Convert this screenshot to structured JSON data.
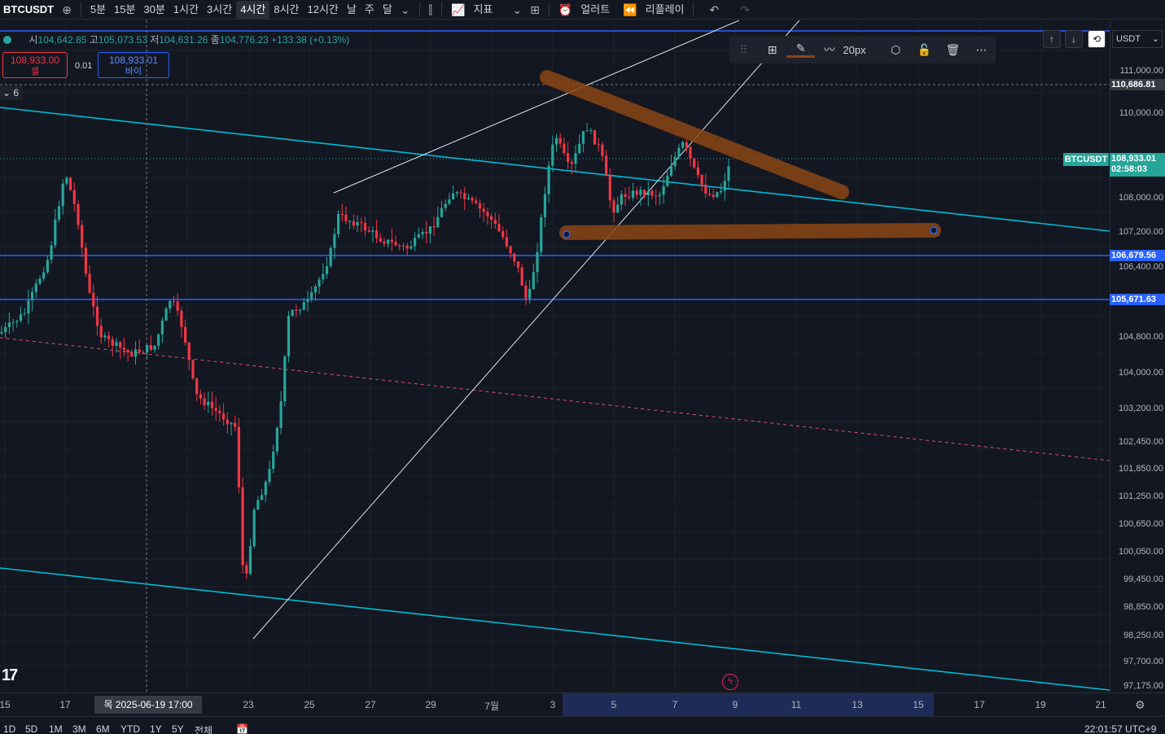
{
  "toolbar": {
    "symbol": "BTCUSDT",
    "add_symbol_icon": "plus-circle-icon",
    "intervals": [
      "5분",
      "15분",
      "30분",
      "1시간",
      "3시간",
      "4시간",
      "8시간",
      "12시간",
      "날",
      "주",
      "달"
    ],
    "active_interval": "4시간",
    "indicators_label": "지표",
    "alert_label": "얼러트",
    "replay_label": "리플레이"
  },
  "ohlc": {
    "open_label": "시",
    "open": "104,642.85",
    "high_label": "고",
    "high": "105,073.53",
    "low_label": "저",
    "low": "104,631.26",
    "close_label": "종",
    "close": "104,776.23",
    "change": "+133.38 (+0.13%)"
  },
  "trade": {
    "sell_price": "108,933.00",
    "sell_label": "셀",
    "spread": "0.01",
    "buy_price": "108,933.01",
    "buy_label": "바이"
  },
  "indicator_collapse": "6",
  "drawing_toolbar": {
    "stroke_width": "20px"
  },
  "price_scale": {
    "currency": "USDT",
    "ticks": [
      "111,000.00",
      "110,000.00",
      "108,000.00",
      "107,200.00",
      "106,400.00",
      "104,800.00",
      "104,000.00",
      "103,200.00",
      "102,450.00",
      "101,850.00",
      "101,250.00",
      "100,650.00",
      "100,050.00",
      "99,450.00",
      "98,850.00",
      "98,250.00",
      "97,700.00",
      "97,175.00"
    ],
    "crosshair_price": "110,686.81",
    "last_symbol": "BTCUSDT",
    "last_price": "108,933.01",
    "countdown": "02:58:03",
    "hline_1": "106,679.56",
    "hline_2": "105,671.63"
  },
  "time_axis": {
    "labels": [
      "15",
      "17",
      "23",
      "25",
      "27",
      "29",
      "7월",
      "3",
      "5",
      "7",
      "9",
      "11",
      "13",
      "15",
      "17",
      "19",
      "21"
    ],
    "cursor_time": "목 2025-06-19   17:00"
  },
  "bottom_bar": {
    "ranges": [
      "1D",
      "5D",
      "1M",
      "3M",
      "6M",
      "YTD",
      "1Y",
      "5Y",
      "전체"
    ],
    "clock": "22:01:57 UTC+9"
  },
  "colors": {
    "up": "#26a69a",
    "down": "#f23645",
    "channel": "#00bcd4",
    "hline": "#2962ff",
    "drawing": "#8b4513",
    "background": "#131722"
  }
}
